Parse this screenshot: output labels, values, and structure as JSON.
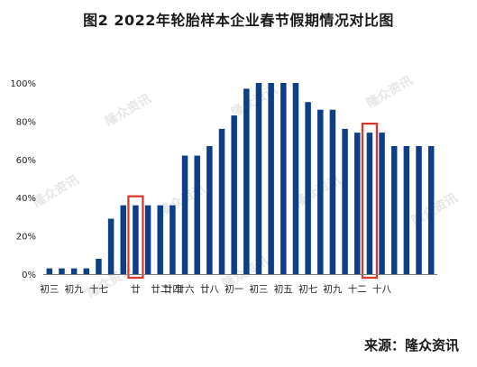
{
  "title": "图2 2022年轮胎样本企业春节假期情况对比图",
  "source": "来源：隆众资讯",
  "watermark": "隆众资讯",
  "chart_data": {
    "type": "bar",
    "title": "图2 2022年轮胎样本企业春节假期情况对比图",
    "xlabel": "",
    "ylabel": "",
    "ylim": [
      0,
      100
    ],
    "y_ticks": [
      "0%",
      "20%",
      "40%",
      "60%",
      "80%",
      "100%"
    ],
    "y_tick_values": [
      0,
      20,
      40,
      60,
      80,
      100
    ],
    "grid": false,
    "bar_color": "#0d3e86",
    "highlight_color": "#d9352b",
    "highlight_indices": [
      7,
      26
    ],
    "x_tick_labels": [
      {
        "index": 0,
        "label": "初三"
      },
      {
        "index": 2,
        "label": "初九"
      },
      {
        "index": 4,
        "label": "十七"
      },
      {
        "index": 7,
        "label": "廿"
      },
      {
        "index": 9,
        "label": "廿二"
      },
      {
        "index": 10,
        "label": "廿四"
      },
      {
        "index": 11,
        "label": "廿六"
      },
      {
        "index": 13,
        "label": "廿八"
      },
      {
        "index": 15,
        "label": "初一"
      },
      {
        "index": 17,
        "label": "初三"
      },
      {
        "index": 19,
        "label": "初五"
      },
      {
        "index": 21,
        "label": "初七"
      },
      {
        "index": 23,
        "label": "初九"
      },
      {
        "index": 25,
        "label": "十二"
      },
      {
        "index": 27,
        "label": "十八"
      }
    ],
    "values": [
      3,
      3,
      3,
      3,
      8,
      29,
      36,
      36,
      36,
      36,
      36,
      62,
      62,
      67,
      76,
      83,
      97,
      100,
      100,
      100,
      100,
      90,
      86,
      86,
      76,
      74,
      74,
      74,
      67,
      67,
      67,
      67
    ]
  }
}
